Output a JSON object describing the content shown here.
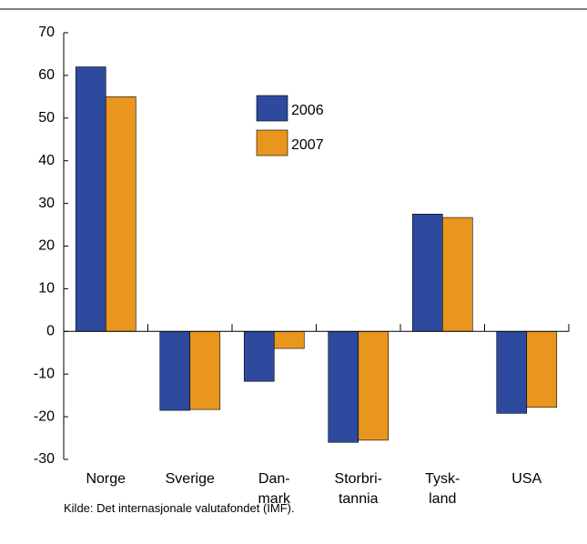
{
  "chart_data": {
    "type": "bar",
    "categories": [
      "Norge",
      "Sverige",
      "Dan-\nmark",
      "Storbri-\ntannia",
      "Tysk-\nland",
      "USA"
    ],
    "series": [
      {
        "name": "2006",
        "color": "#2e4a9e",
        "values": [
          62,
          -18.5,
          -11.7,
          -26,
          27.5,
          -19.2
        ]
      },
      {
        "name": "2007",
        "color": "#e8961e",
        "values": [
          55,
          -18.3,
          -4,
          -25.5,
          26.7,
          -17.8
        ]
      }
    ],
    "ylim": [
      -30,
      70
    ],
    "yticks": [
      -30,
      -20,
      -10,
      0,
      10,
      20,
      30,
      40,
      50,
      60,
      70
    ],
    "source": "Kilde: Det internasjonale valutafondet (IMF)."
  }
}
